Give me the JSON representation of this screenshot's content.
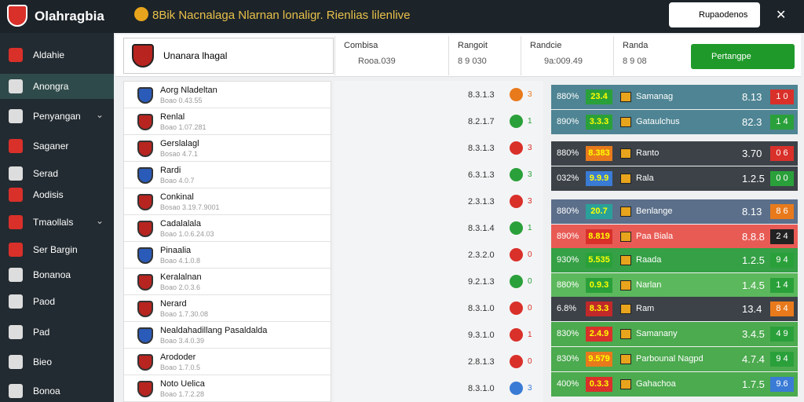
{
  "header": {
    "logo": "Olahragbia",
    "title": "8Bik Nacnalaga Nlarnan lonaligr. Rienlias lilenlive",
    "button": "Rupaodenos"
  },
  "sidebar": [
    "Aldahie",
    "Anongra",
    "Penyangan",
    "Saganer",
    "Serad",
    "Aodisis",
    "Tmaollals",
    "Ser Bargin",
    "Bonanoa",
    "Paod",
    "Pad",
    "Bieo",
    "Bonoa"
  ],
  "summary": {
    "team": "Unanara lhagal",
    "columns": [
      {
        "label": "Combisa",
        "value": "Rooa.039"
      },
      {
        "label": "Rangoit",
        "value": "8 9 030"
      },
      {
        "label": "Randcie",
        "value": "9a:009.49"
      },
      {
        "label": "Randa",
        "value": "8 9 08"
      }
    ],
    "button": "Pertangpe"
  },
  "matches": [
    {
      "name": "Aorg Nladeltan",
      "sub": "Boao 0.43.55",
      "value": "8.3.1.3",
      "count": "3"
    },
    {
      "name": "Renlal",
      "sub": "Boao 1.07.281",
      "value": "8.2.1.7",
      "count": "1"
    },
    {
      "name": "Gerslalagl",
      "sub": "Bosao 4.7.1",
      "value": "8.3.1.3",
      "count": "3"
    },
    {
      "name": "Rardi",
      "sub": "Boao 4.0.7",
      "value": "6.3.1.3",
      "count": "3"
    },
    {
      "name": "Conkinal",
      "sub": "Bosao 3.19.7.9001",
      "value": "2.3.1.3",
      "count": "3"
    },
    {
      "name": "Cadalalala",
      "sub": "Boao 1.0.6.24.03",
      "value": "8.3.1.4",
      "count": "1"
    },
    {
      "name": "Pinaalia",
      "sub": "Boao 4.1.0.8",
      "value": "2.3.2.0",
      "count": "0"
    },
    {
      "name": "Keralalnan",
      "sub": "Boao 2.0.3.6",
      "value": "9.2.1.3",
      "count": "0"
    },
    {
      "name": "Nerard",
      "sub": "Boao 1.7.30.08",
      "value": "8.3.1.0",
      "count": "0"
    },
    {
      "name": "Nealdahadillang Pasaldalda",
      "sub": "Boao 3.4.0.39",
      "value": "9.3.1.0",
      "count": "1"
    },
    {
      "name": "Arododer",
      "sub": "Boao 1.7.0.5",
      "value": "2.8.1.3",
      "count": "0"
    },
    {
      "name": "Noto Uelica",
      "sub": "Boao 1.7.2.28",
      "value": "8.3.1.0",
      "count": "3"
    }
  ],
  "odds": [
    {
      "pct": "880%",
      "score": "23.4",
      "team": "Samanag",
      "value": "8.13",
      "badge": "1 0"
    },
    {
      "pct": "890%",
      "score": "3.3.3",
      "team": "Gataulchus",
      "value": "82.3",
      "badge": "1 4"
    },
    {
      "pct": "880%",
      "score": "8.383",
      "team": "Ranto",
      "value": "3.70",
      "badge": "0 6"
    },
    {
      "pct": "032%",
      "score": "9.9.9",
      "team": "Rala",
      "value": "1.2.5",
      "badge": "0 0"
    },
    {
      "pct": "880%",
      "score": "20.7",
      "team": "Benlange",
      "value": "8.13",
      "badge": "8 6"
    },
    {
      "pct": "890%",
      "score": "8.819",
      "team": "Paa Biala",
      "value": "8.8.8",
      "badge": "2 4"
    },
    {
      "pct": "930%",
      "score": "5.535",
      "team": "Raada",
      "value": "1.2.5",
      "badge": "9 4"
    },
    {
      "pct": "880%",
      "score": "0.9.3",
      "team": "Narlan",
      "value": "1.4.5",
      "badge": "1 4"
    },
    {
      "pct": "6.8%",
      "score": "8.3.3",
      "team": "Ram",
      "value": "13.4",
      "badge": "8 4"
    },
    {
      "pct": "830%",
      "score": "2.4.9",
      "team": "Samanany",
      "value": "3.4.5",
      "badge": "4 9"
    },
    {
      "pct": "830%",
      "score": "9.579",
      "team": "Parbounal Nagpd",
      "value": "4.7.4",
      "badge": "9 4"
    },
    {
      "pct": "400%",
      "score": "0.3.3",
      "team": "Gahachoa",
      "value": "1.7.5",
      "badge": "9.6"
    }
  ]
}
